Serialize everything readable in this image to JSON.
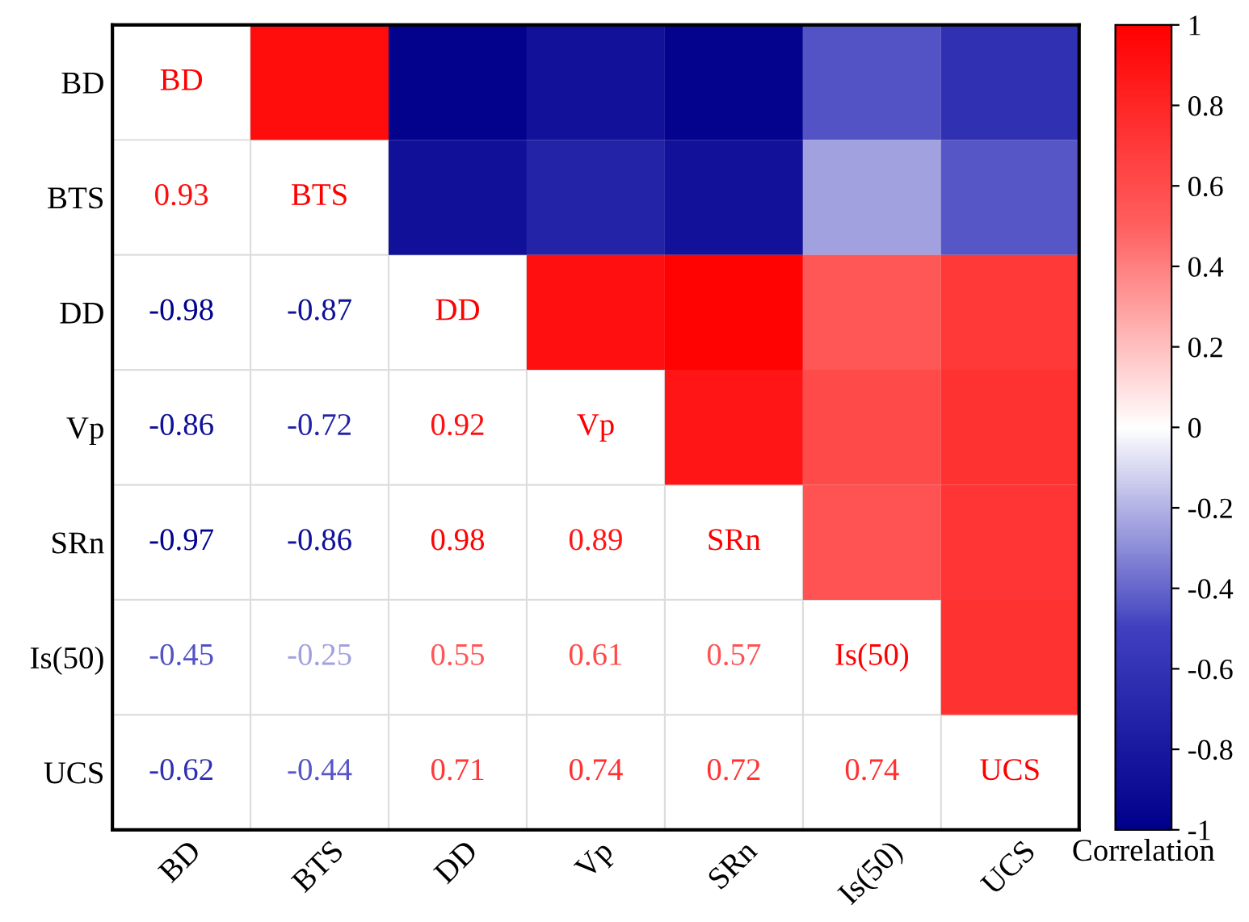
{
  "chart_data": {
    "type": "heatmap",
    "categories": [
      "BD",
      "BTS",
      "DD",
      "Vp",
      "SRn",
      "Is(50)",
      "UCS"
    ],
    "y_categories": [
      "BD",
      "BTS",
      "DD",
      "Vp",
      "SRn",
      "Is(50)",
      "UCS"
    ],
    "cells": [
      [
        null,
        0.93,
        -0.98,
        -0.86,
        -0.97,
        -0.45,
        -0.62
      ],
      [
        null,
        null,
        -0.87,
        -0.72,
        -0.86,
        -0.25,
        -0.44
      ],
      [
        null,
        null,
        null,
        0.92,
        0.98,
        0.55,
        0.71
      ],
      [
        null,
        null,
        null,
        null,
        0.89,
        0.61,
        0.74
      ],
      [
        null,
        null,
        null,
        null,
        null,
        0.57,
        0.72
      ],
      [
        null,
        null,
        null,
        null,
        null,
        null,
        0.74
      ],
      [
        null,
        null,
        null,
        null,
        null,
        null,
        null
      ]
    ],
    "cell_labels": [
      [
        "BD",
        null,
        null,
        null,
        null,
        null,
        null
      ],
      [
        "0.93",
        "BTS",
        null,
        null,
        null,
        null,
        null
      ],
      [
        "-0.98",
        "-0.87",
        "DD",
        null,
        null,
        null,
        null
      ],
      [
        "-0.86",
        "-0.72",
        "0.92",
        "Vp",
        null,
        null,
        null
      ],
      [
        "-0.97",
        "-0.86",
        "0.98",
        "0.89",
        "SRn",
        null,
        null
      ],
      [
        "-0.45",
        "-0.25",
        "0.55",
        "0.61",
        "0.57",
        "Is(50)",
        null
      ],
      [
        "-0.62",
        "-0.44",
        "0.71",
        "0.74",
        "0.72",
        "0.74",
        "UCS"
      ]
    ],
    "clim": [
      -1,
      1
    ],
    "cticks": [
      -1,
      -0.8,
      -0.6,
      -0.4,
      -0.2,
      0,
      0.2,
      0.4,
      0.6,
      0.8,
      1
    ],
    "clabel": "Correlation",
    "grid": true
  }
}
